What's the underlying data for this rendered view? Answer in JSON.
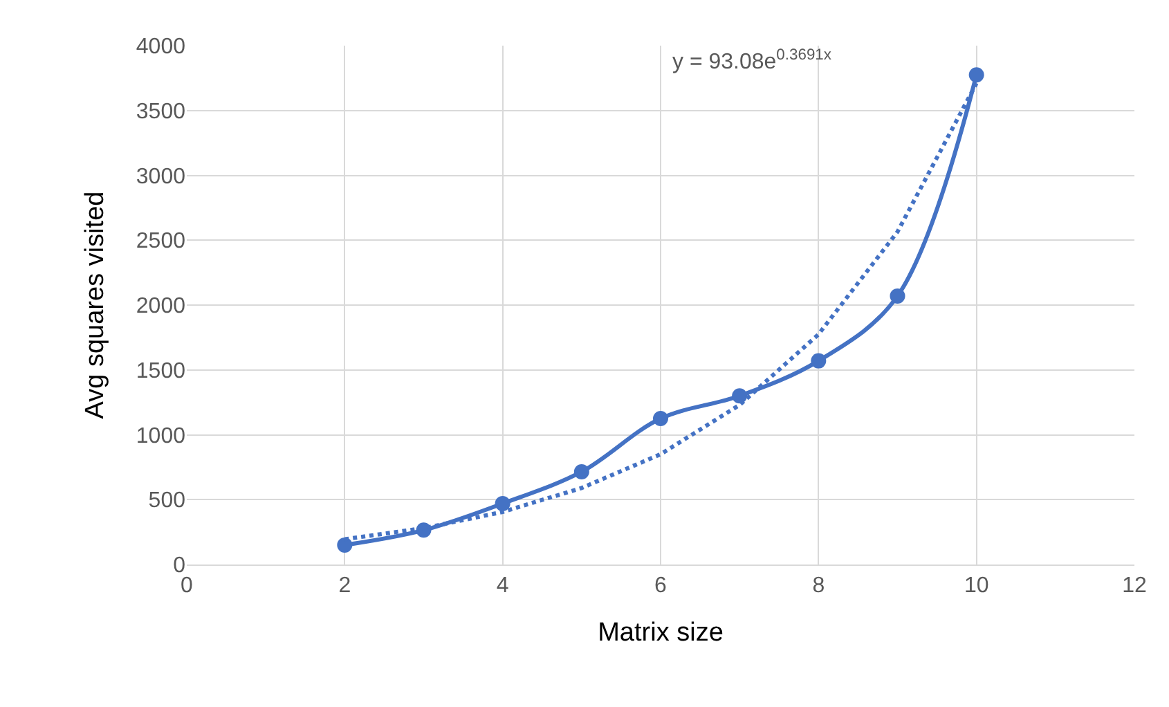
{
  "chart_data": {
    "type": "line",
    "xlabel": "Matrix size",
    "ylabel": "Avg squares visited",
    "xlim": [
      0,
      12
    ],
    "xticks": [
      0,
      2,
      4,
      6,
      8,
      10,
      12
    ],
    "ylim": [
      0,
      4000
    ],
    "yticks": [
      0,
      500,
      1000,
      1500,
      2000,
      2500,
      3000,
      3500,
      4000
    ],
    "grid": true,
    "marker": "circle",
    "line_style": "solid",
    "annotations": [
      "y = 93.08e$^{0.3691x}$"
    ],
    "x": [
      2,
      3,
      4,
      5,
      6,
      7,
      8,
      9,
      10
    ],
    "series": [
      {
        "color": "#4472c4",
        "values": [
          150,
          265,
          470,
          715,
          1125,
          1300,
          1570,
          2070,
          3775
        ]
      },
      {
        "type": "line",
        "color": "#4472c4",
        "line_style": "dotted",
        "marker": "none",
        "x": [
          2,
          3,
          4,
          5,
          6,
          7,
          8,
          9,
          10
        ],
        "values": [
          195,
          280,
          405,
          590,
          850,
          1230,
          1775,
          2565,
          3710
        ]
      }
    ]
  }
}
